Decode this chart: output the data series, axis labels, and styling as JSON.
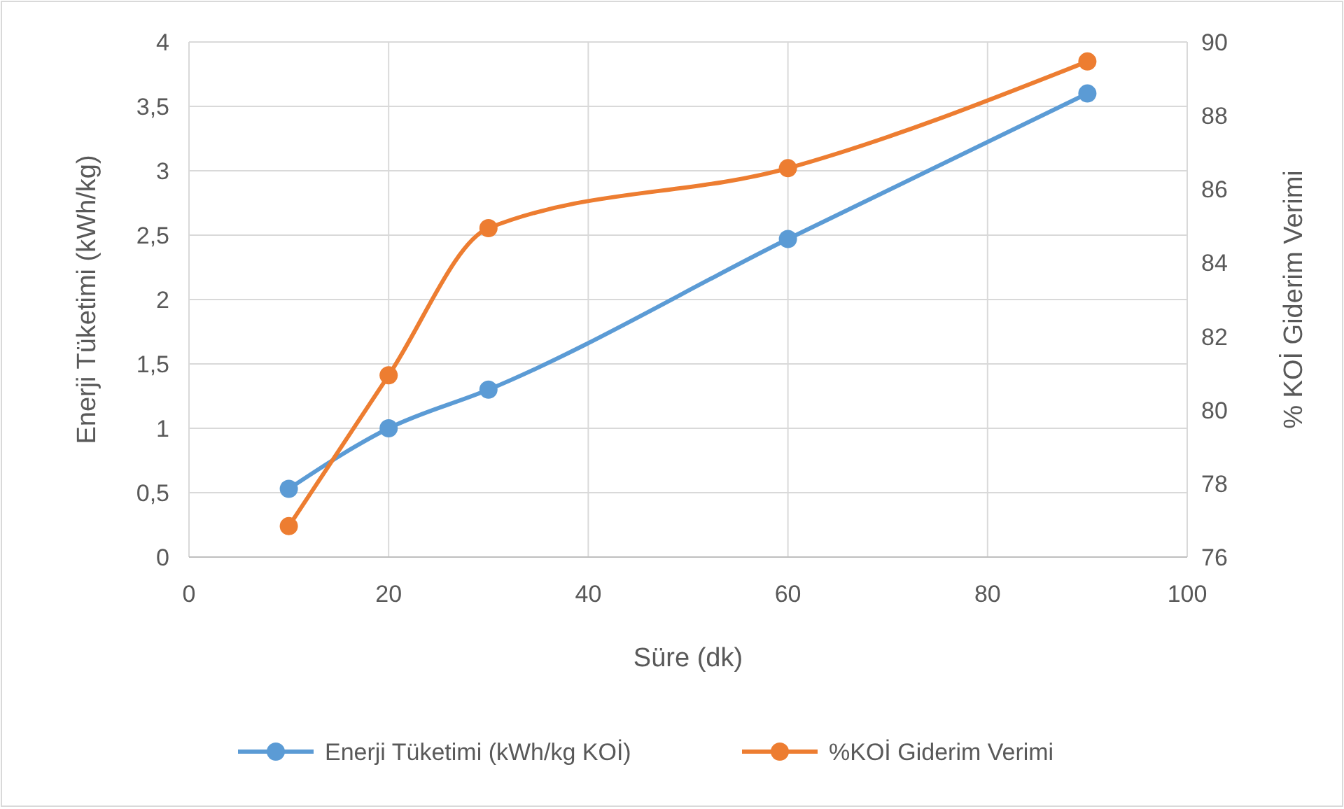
{
  "chart_data": {
    "type": "line",
    "xlabel": "Süre (dk)",
    "ylabel": "Enerji Tüketimi (kWh/kg)",
    "y2label": "% KOİ Giderim Verimi",
    "x": [
      10,
      20,
      30,
      60,
      90
    ],
    "series": [
      {
        "name": "Enerji Tüketimi (kWh/kg KOİ)",
        "color": "#5b9bd5",
        "values": [
          0.53,
          1.0,
          1.3,
          2.47,
          3.6
        ]
      },
      {
        "name": "%KOİ Giderim Verimi",
        "color": "#ed7d31",
        "axis": "y2",
        "values": [
          76.84,
          80.94,
          84.94,
          86.57,
          89.47
        ]
      }
    ],
    "xlim": [
      0,
      100
    ],
    "xticks": [
      0,
      20,
      40,
      60,
      80,
      100
    ],
    "ylim": [
      0,
      4
    ],
    "yticks": [
      0,
      {
        "value": 0.5,
        "label": "0,5"
      },
      1,
      {
        "value": 1.5,
        "label": "1,5"
      },
      2,
      {
        "value": 2.5,
        "label": "2,5"
      },
      3,
      {
        "value": 3.5,
        "label": "3,5"
      },
      4
    ],
    "y2lim": [
      76,
      90
    ],
    "y2ticks": [
      76,
      78,
      80,
      82,
      84,
      86,
      88,
      90
    ],
    "grid": true,
    "legend": "bottom",
    "marker": "circle",
    "line_style": "solid"
  }
}
